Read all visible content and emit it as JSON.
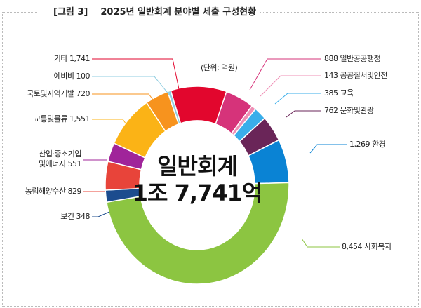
{
  "figure_label": "[그림 3]",
  "title": "2025년 일반회계 분야별 세출 구성현황",
  "unit": "(단위: 억원)",
  "center": {
    "line1": "일반회계",
    "line2": "1조 7,741억"
  },
  "chart_data": {
    "type": "pie",
    "donut": true,
    "title": "2025년 일반회계 분야별 세출 구성현황",
    "unit": "억원",
    "total": 17741,
    "start_angle_deg": 18.6,
    "direction": "clockwise",
    "slices": [
      {
        "name": "일반공공행정",
        "value": 888,
        "label": "888 일반공공행정",
        "color": "#d6337a"
      },
      {
        "name": "공공질서및안전",
        "value": 143,
        "label": "143 공공질서및안전",
        "color": "#ef8fb5"
      },
      {
        "name": "교육",
        "value": 385,
        "label": "385 교육",
        "color": "#39aeea"
      },
      {
        "name": "문화및관광",
        "value": 762,
        "label": "762 문화및관광",
        "color": "#6a2558"
      },
      {
        "name": "환경",
        "value": 1269,
        "label": "1,269 환경",
        "color": "#0a83d4"
      },
      {
        "name": "사회복지",
        "value": 8454,
        "label": "8,454 사회복지",
        "color": "#8cc541"
      },
      {
        "name": "보건",
        "value": 348,
        "label": "보건 348",
        "color": "#1c4c8e"
      },
      {
        "name": "농림해양수산",
        "value": 829,
        "label": "농림해양수산 829",
        "color": "#e8443a"
      },
      {
        "name": "산업·중소기업및에너지",
        "value": 551,
        "label": "산업·중소기업",
        "label2": "및에너지 551",
        "color": "#a0249a"
      },
      {
        "name": "교통및물류",
        "value": 1551,
        "label": "교통및물류 1,551",
        "color": "#fbb316"
      },
      {
        "name": "국토및지역개발",
        "value": 720,
        "label": "국토및지역개발 720",
        "color": "#f7931e"
      },
      {
        "name": "예비비",
        "value": 100,
        "label": "예비비 100",
        "color": "#8fcde0"
      },
      {
        "name": "기타",
        "value": 1741,
        "label": "기타 1,741",
        "color": "#e2062d"
      }
    ]
  }
}
